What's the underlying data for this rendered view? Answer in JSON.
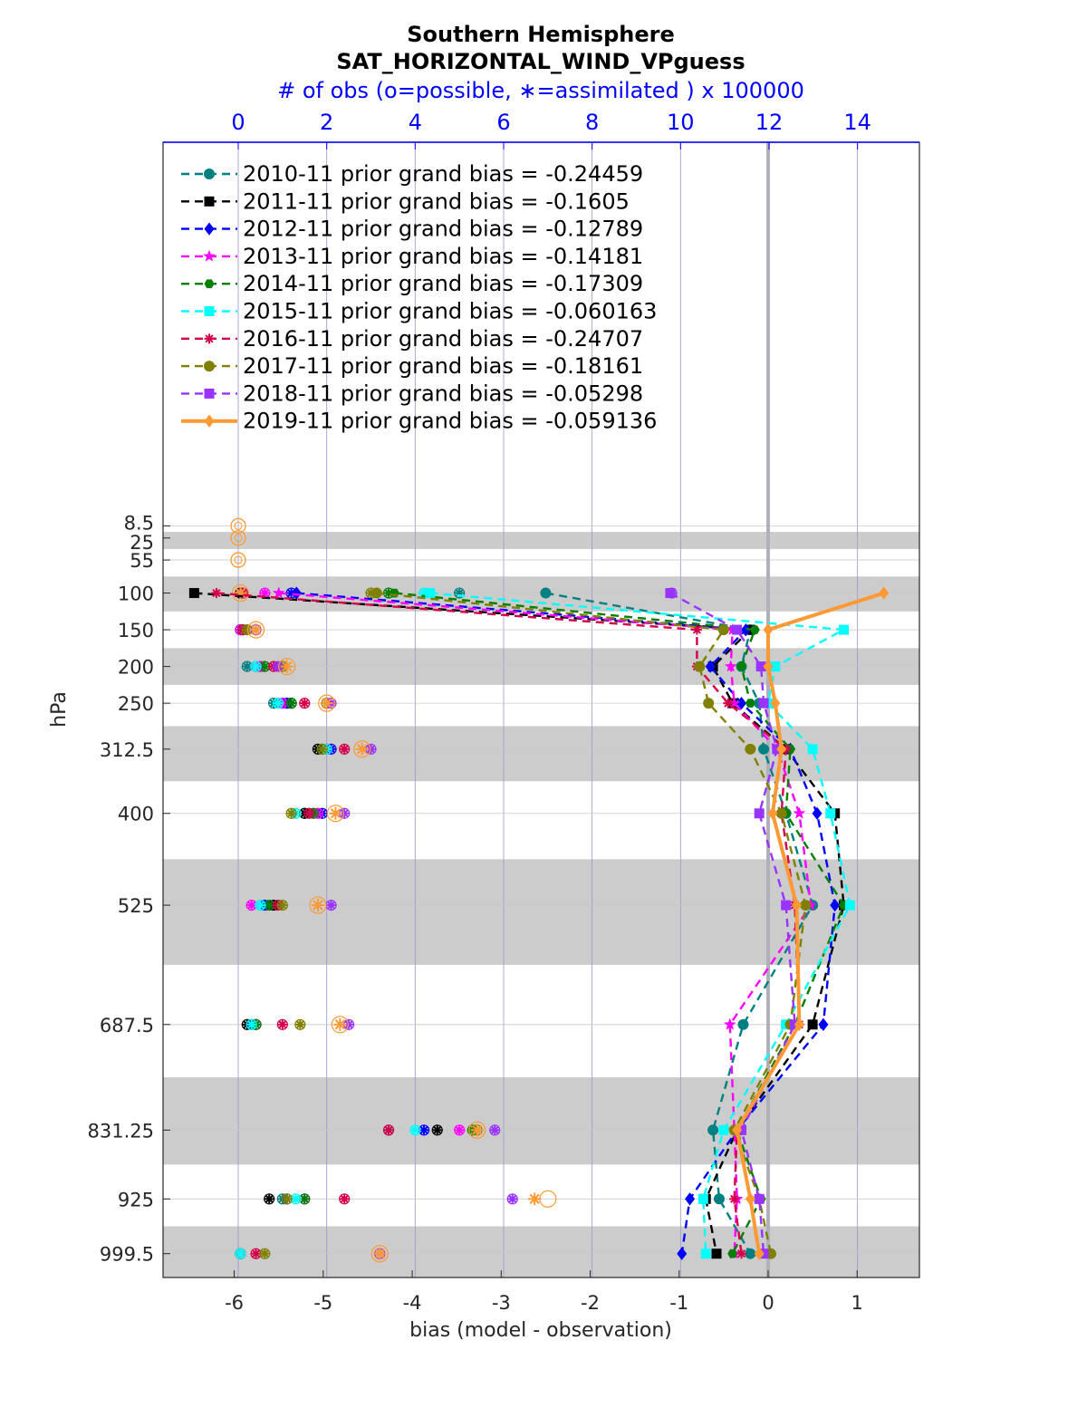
{
  "chart_data": {
    "type": "line",
    "title": "Southern Hemisphere",
    "subtitle": "SAT_HORIZONTAL_WIND_VPguess",
    "top_axis_label": "# of obs (o=possible, ∗=assimilated ) x 100000",
    "xlabel": "bias (model - observation)",
    "ylabel": "hPa",
    "xlim": [
      -6.8,
      1.7
    ],
    "x_ticks": [
      -6,
      -5,
      -4,
      -3,
      -2,
      -1,
      0,
      1
    ],
    "x_tick_labels": [
      "-6",
      "-5",
      "-4",
      "-3",
      "-2",
      "-1",
      "0",
      "1"
    ],
    "top_xlim": [
      -1.7,
      15.4
    ],
    "top_ticks": [
      0,
      2,
      4,
      6,
      8,
      10,
      12,
      14
    ],
    "top_tick_labels": [
      "0",
      "2",
      "4",
      "6",
      "8",
      "10",
      "12",
      "14"
    ],
    "y_levels": [
      8.5,
      25,
      55,
      100,
      150,
      200,
      250,
      312.5,
      400,
      525,
      687.5,
      831.25,
      925,
      999.5
    ],
    "y_tick_labels": [
      "8.5",
      "25",
      "55",
      "100",
      "150",
      "200",
      "250",
      "312.5",
      "400",
      "525",
      "687.5",
      "831.25",
      "925",
      "999.5"
    ],
    "y_reversed": true,
    "grid": true,
    "zero_line": true,
    "legend_position": "top-left",
    "series": [
      {
        "name": "2010-11 prior grand bias = -0.24459",
        "color": "#008080",
        "marker": "circle",
        "style": "dashed",
        "levels": [
          100,
          150,
          200,
          250,
          312.5,
          400,
          525,
          687.5,
          831.25,
          925,
          999.5
        ],
        "values": [
          -2.5,
          -0.2,
          -0.3,
          -0.1,
          -0.05,
          0.2,
          0.5,
          -0.28,
          -0.62,
          -0.55,
          -0.2
        ],
        "obs_possible": [
          5.0,
          0.05,
          0.2,
          0.8,
          2.0,
          1.5,
          0.5,
          0.4,
          3.4,
          1.0,
          0.05
        ],
        "obs_assimilated": [
          5.0,
          0.05,
          0.2,
          0.8,
          2.0,
          1.5,
          0.5,
          0.4,
          3.4,
          1.0,
          0.05
        ]
      },
      {
        "name": "2011-11 prior grand bias = -0.1605",
        "color": "#000000",
        "marker": "square",
        "style": "dashed",
        "levels": [
          100,
          150,
          200,
          250,
          312.5,
          400,
          525,
          687.5,
          831.25,
          925,
          999.5
        ],
        "values": [
          -6.45,
          -0.2,
          -0.62,
          -0.4,
          0.2,
          0.75,
          0.85,
          0.5,
          -0.35,
          -0.7,
          -0.58
        ],
        "obs_possible": [
          0.05,
          0.05,
          0.5,
          1.2,
          1.8,
          1.5,
          0.8,
          0.2,
          4.5,
          0.7,
          0.05
        ],
        "obs_assimilated": [
          0.05,
          0.05,
          0.5,
          1.2,
          1.8,
          1.5,
          0.8,
          0.2,
          4.5,
          0.7,
          0.05
        ]
      },
      {
        "name": "2012-11 prior grand bias = -0.12789",
        "color": "#0000ff",
        "marker": "diamond",
        "style": "dashed",
        "levels": [
          100,
          150,
          200,
          250,
          312.5,
          400,
          525,
          687.5,
          831.25,
          925,
          999.5
        ],
        "values": [
          -5.3,
          -0.25,
          -0.65,
          -0.3,
          0.25,
          0.55,
          0.75,
          0.62,
          -0.35,
          -0.88,
          -0.97
        ],
        "obs_possible": [
          1.2,
          0.1,
          0.4,
          1.1,
          2.1,
          1.9,
          0.6,
          0.3,
          4.2,
          1.1,
          0.05
        ],
        "obs_assimilated": [
          1.2,
          0.1,
          0.4,
          1.1,
          2.1,
          1.9,
          0.6,
          0.3,
          4.2,
          1.1,
          0.05
        ]
      },
      {
        "name": "2013-11 prior grand bias = -0.14181",
        "color": "#ff00ff",
        "marker": "star",
        "style": "dashed",
        "levels": [
          100,
          150,
          200,
          250,
          312.5,
          400,
          525,
          687.5,
          831.25,
          925,
          999.5
        ],
        "values": [
          -5.5,
          -0.4,
          -0.42,
          -0.38,
          0.1,
          0.35,
          0.48,
          -0.43,
          -0.38,
          -0.35,
          -0.38
        ],
        "obs_possible": [
          0.6,
          0.05,
          0.5,
          1.0,
          2.0,
          1.8,
          0.3,
          0.4,
          5.0,
          1.5,
          0.05
        ],
        "obs_assimilated": [
          0.6,
          0.05,
          0.5,
          1.0,
          2.0,
          1.8,
          0.3,
          0.4,
          5.0,
          1.5,
          0.05
        ]
      },
      {
        "name": "2014-11 prior grand bias = -0.17309",
        "color": "#007f00",
        "marker": "hexagram",
        "style": "dashed",
        "levels": [
          100,
          150,
          200,
          250,
          312.5,
          400,
          525,
          687.5,
          831.25,
          925,
          999.5
        ],
        "values": [
          -4.2,
          -0.15,
          -0.3,
          -0.2,
          0.25,
          0.2,
          0.85,
          0.3,
          -0.35,
          -0.08,
          -0.4
        ],
        "obs_possible": [
          3.4,
          0.1,
          0.6,
          1.2,
          1.9,
          1.7,
          0.7,
          0.4,
          5.3,
          1.5,
          0.05
        ],
        "obs_assimilated": [
          3.4,
          0.1,
          0.6,
          1.2,
          1.9,
          1.7,
          0.7,
          0.4,
          5.3,
          1.5,
          0.05
        ]
      },
      {
        "name": "2015-11 prior grand bias = -0.060163",
        "color": "#00ffff",
        "marker": "square",
        "style": "dashed",
        "levels": [
          100,
          150,
          200,
          250,
          312.5,
          400,
          525,
          687.5,
          831.25,
          925,
          999.5
        ],
        "values": [
          -3.8,
          0.85,
          0.08,
          0.0,
          0.5,
          0.7,
          0.92,
          0.2,
          -0.5,
          -0.73,
          -0.7
        ],
        "obs_possible": [
          4.2,
          0.1,
          0.4,
          0.9,
          2.0,
          1.3,
          0.5,
          0.3,
          4.0,
          1.3,
          0.05
        ],
        "obs_assimilated": [
          4.2,
          0.1,
          0.4,
          0.9,
          2.0,
          1.3,
          0.5,
          0.3,
          4.0,
          1.3,
          0.05
        ]
      },
      {
        "name": "2016-11 prior grand bias = -0.24707",
        "color": "#d4004c",
        "marker": "asterisk",
        "style": "dashed",
        "levels": [
          100,
          150,
          200,
          250,
          312.5,
          400,
          525,
          687.5,
          831.25,
          925,
          999.5
        ],
        "values": [
          -6.2,
          -0.8,
          -0.8,
          -0.45,
          0.2,
          0.15,
          0.3,
          0.35,
          -0.35,
          -0.38,
          -0.3
        ],
        "obs_possible": [
          0.1,
          0.1,
          0.8,
          1.5,
          2.4,
          1.6,
          0.9,
          1.0,
          3.4,
          2.4,
          0.4
        ],
        "obs_assimilated": [
          0.1,
          0.1,
          0.8,
          1.5,
          2.4,
          1.6,
          0.9,
          1.0,
          3.4,
          2.4,
          0.4
        ]
      },
      {
        "name": "2017-11 prior grand bias = -0.18161",
        "color": "#808000",
        "marker": "circle",
        "style": "dashed",
        "levels": [
          100,
          150,
          200,
          250,
          312.5,
          400,
          525,
          687.5,
          831.25,
          925,
          999.5
        ],
        "values": [
          -4.4,
          -0.5,
          -0.77,
          -0.67,
          -0.2,
          0.15,
          0.42,
          0.25,
          -0.38,
          -0.1,
          0.03
        ],
        "obs_possible": [
          3.0,
          0.2,
          1.0,
          2.0,
          1.9,
          1.2,
          1.0,
          1.4,
          5.4,
          1.1,
          0.6
        ],
        "obs_assimilated": [
          3.0,
          0.2,
          1.0,
          2.0,
          1.9,
          1.2,
          1.0,
          1.4,
          5.4,
          1.1,
          0.6
        ]
      },
      {
        "name": "2018-11 prior grand bias = -0.05298",
        "color": "#9933ff",
        "marker": "square",
        "style": "dashed",
        "levels": [
          100,
          150,
          200,
          250,
          312.5,
          400,
          525,
          687.5,
          831.25,
          925,
          999.5
        ],
        "values": [
          -1.1,
          -0.35,
          -0.08,
          -0.05,
          0.1,
          -0.1,
          0.2,
          0.3,
          -0.3,
          -0.1,
          -0.05
        ],
        "obs_possible": [
          9.8,
          0.4,
          0.9,
          2.1,
          3.0,
          2.4,
          2.1,
          2.5,
          5.8,
          6.2,
          3.2
        ],
        "obs_assimilated": [
          9.8,
          0.4,
          0.9,
          2.1,
          3.0,
          2.4,
          2.1,
          2.5,
          5.8,
          6.2,
          3.2
        ]
      },
      {
        "name": "2019-11 prior grand bias = -0.059136",
        "color": "#ff9933",
        "marker": "diamond",
        "style": "solid",
        "levels": [
          100,
          150,
          200,
          250,
          312.5,
          400,
          525,
          687.5,
          831.25,
          925,
          999.5
        ],
        "values": [
          1.3,
          0.0,
          0.0,
          0.08,
          0.15,
          0.05,
          0.32,
          0.35,
          -0.35,
          -0.2,
          -0.1
        ],
        "obs_possible": [
          0.05,
          0.4,
          1.1,
          2.0,
          2.8,
          2.2,
          1.8,
          2.3,
          5.4,
          7.0,
          3.2
        ],
        "obs_assimilated": [
          0.05,
          0.4,
          1.1,
          2.0,
          2.8,
          2.2,
          1.8,
          2.3,
          5.4,
          6.7,
          3.2
        ]
      }
    ],
    "empty_levels_obs_possible": {
      "levels": [
        8.5,
        25,
        55
      ],
      "value": 0
    }
  }
}
